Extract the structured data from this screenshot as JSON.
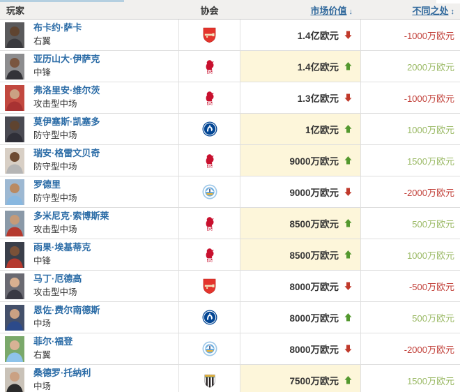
{
  "header": {
    "player_label": "玩家",
    "club_label": "协会",
    "market_value_label": "市场价值",
    "market_value_sort_glyph": "↓",
    "difference_label": "不同之处",
    "difference_sort_glyph": "↕"
  },
  "colors": {
    "link_blue": "#2a6ba6",
    "header_bg": "#f1f0ee",
    "tab_strip_blue": "#b4cfe0",
    "highlight_yellow": "#fdf6da",
    "up_green": "#53982e",
    "down_red": "#c0392b",
    "diff_positive_green": "#9ab964",
    "diff_negative_red": "#c2413a"
  },
  "rows": [
    {
      "name": "布卡约·萨卡",
      "position": "右翼",
      "club": "arsenal",
      "market_value": "1.4亿欧元",
      "trend": "down",
      "diff": "-1000万欧元",
      "highlight": false,
      "photo": {
        "bg": "#5a5a5c",
        "skin": "#5f4430",
        "jersey": "#3a3a3e"
      }
    },
    {
      "name": "亚历山大·伊萨克",
      "position": "中锋",
      "club": "liverpool",
      "market_value": "1.4亿欧元",
      "trend": "up",
      "diff": "2000万欧元",
      "highlight": true,
      "photo": {
        "bg": "#8d8d8f",
        "skin": "#7a5640",
        "jersey": "#333338"
      }
    },
    {
      "name": "弗洛里安·维尔茨",
      "position": "攻击型中场",
      "club": "liverpool",
      "market_value": "1.3亿欧元",
      "trend": "down",
      "diff": "-1000万欧元",
      "highlight": false,
      "photo": {
        "bg": "#c2483f",
        "skin": "#caa183",
        "jersey": "#a83232"
      }
    },
    {
      "name": "莫伊塞斯·凯塞多",
      "position": "防守型中场",
      "club": "chelsea",
      "market_value": "1亿欧元",
      "trend": "up",
      "diff": "1000万欧元",
      "highlight": true,
      "photo": {
        "bg": "#4a4a52",
        "skin": "#5f4430",
        "jersey": "#2f2f38"
      }
    },
    {
      "name": "瑞安·格雷文贝奇",
      "position": "防守型中场",
      "club": "liverpool",
      "market_value": "9000万欧元",
      "trend": "up",
      "diff": "1500万欧元",
      "highlight": true,
      "photo": {
        "bg": "#d8cfc5",
        "skin": "#6e4b33",
        "jersey": "#b5b5b5"
      }
    },
    {
      "name": "罗德里",
      "position": "防守型中场",
      "club": "mancity",
      "market_value": "9000万欧元",
      "trend": "down",
      "diff": "-2000万欧元",
      "highlight": false,
      "photo": {
        "bg": "#9db8d2",
        "skin": "#b98a63",
        "jersey": "#89b8e0"
      }
    },
    {
      "name": "多米尼克·索博斯莱",
      "position": "攻击型中场",
      "club": "liverpool",
      "market_value": "8500万欧元",
      "trend": "up",
      "diff": "500万欧元",
      "highlight": true,
      "photo": {
        "bg": "#8a99a8",
        "skin": "#c59a78",
        "jersey": "#b5392e"
      }
    },
    {
      "name": "雨果·埃基蒂克",
      "position": "中锋",
      "club": "liverpool",
      "market_value": "8500万欧元",
      "trend": "up",
      "diff": "1000万欧元",
      "highlight": true,
      "photo": {
        "bg": "#3a3f4a",
        "skin": "#7a5138",
        "jersey": "#b5392e"
      }
    },
    {
      "name": "马丁·厄德高",
      "position": "攻击型中场",
      "club": "arsenal",
      "market_value": "8000万欧元",
      "trend": "down",
      "diff": "-500万欧元",
      "highlight": false,
      "photo": {
        "bg": "#6a6a72",
        "skin": "#d9b090",
        "jersey": "#3a3a44"
      }
    },
    {
      "name": "恩佐·费尔南德斯",
      "position": "中场",
      "club": "chelsea",
      "market_value": "8000万欧元",
      "trend": "up",
      "diff": "500万欧元",
      "highlight": false,
      "photo": {
        "bg": "#44506a",
        "skin": "#caa183",
        "jersey": "#2c4a8a"
      }
    },
    {
      "name": "菲尔·福登",
      "position": "右翼",
      "club": "mancity",
      "market_value": "8000万欧元",
      "trend": "down",
      "diff": "-2000万欧元",
      "highlight": false,
      "photo": {
        "bg": "#7aa86a",
        "skin": "#d8b295",
        "jersey": "#8ec3ea"
      }
    },
    {
      "name": "桑德罗·托纳利",
      "position": "中场",
      "club": "newcastle",
      "market_value": "7500万欧元",
      "trend": "up",
      "diff": "1500万欧元",
      "highlight": true,
      "photo": {
        "bg": "#c9c2b8",
        "skin": "#caa183",
        "jersey": "#2b2b2b"
      }
    }
  ]
}
